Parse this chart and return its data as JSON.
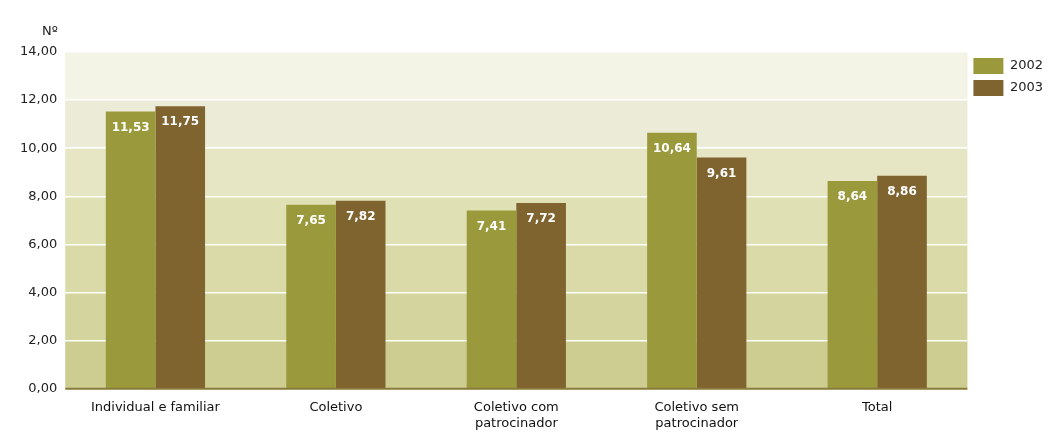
{
  "chart_data": {
    "type": "bar",
    "ylabel": "Nº",
    "categories": [
      "Individual e familiar",
      "Coletivo",
      "Coletivo com patrocinador",
      "Coletivo sem patrocinador",
      "Total"
    ],
    "series": [
      {
        "name": "2002",
        "color": "#9a9a3c",
        "values": [
          11.53,
          7.65,
          7.41,
          10.64,
          8.64
        ],
        "value_labels": [
          "11,53",
          "7,65",
          "7,41",
          "10,64",
          "8,64"
        ]
      },
      {
        "name": "2003",
        "color": "#7f6430",
        "values": [
          11.75,
          7.82,
          7.72,
          9.61,
          8.86
        ],
        "value_labels": [
          "11,75",
          "7,82",
          "7,72",
          "9,61",
          "8,86"
        ]
      }
    ],
    "ylim": [
      0,
      14
    ],
    "yticks": [
      {
        "value": 0,
        "label": "0,00"
      },
      {
        "value": 2,
        "label": "2,00"
      },
      {
        "value": 4,
        "label": "4,00"
      },
      {
        "value": 6,
        "label": "6,00"
      },
      {
        "value": 8,
        "label": "8,00"
      },
      {
        "value": 10,
        "label": "10,00"
      },
      {
        "value": 12,
        "label": "12,00"
      },
      {
        "value": 14,
        "label": "14,00"
      }
    ],
    "bands": [
      {
        "axis": "y",
        "from": 0,
        "to": 2,
        "color": "#cdcd92"
      },
      {
        "axis": "y",
        "from": 2,
        "to": 4,
        "color": "#d4d49e"
      },
      {
        "axis": "y",
        "from": 4,
        "to": 6,
        "color": "#dadaa9"
      },
      {
        "axis": "y",
        "from": 6,
        "to": 8,
        "color": "#e0e0b5"
      },
      {
        "axis": "y",
        "from": 8,
        "to": 10,
        "color": "#e6e6c4"
      },
      {
        "axis": "y",
        "from": 10,
        "to": 12,
        "color": "#ecebd7"
      },
      {
        "axis": "y",
        "from": 12,
        "to": 14,
        "color": "#f3f3e6"
      }
    ],
    "grid": "y",
    "legend": "top right"
  }
}
